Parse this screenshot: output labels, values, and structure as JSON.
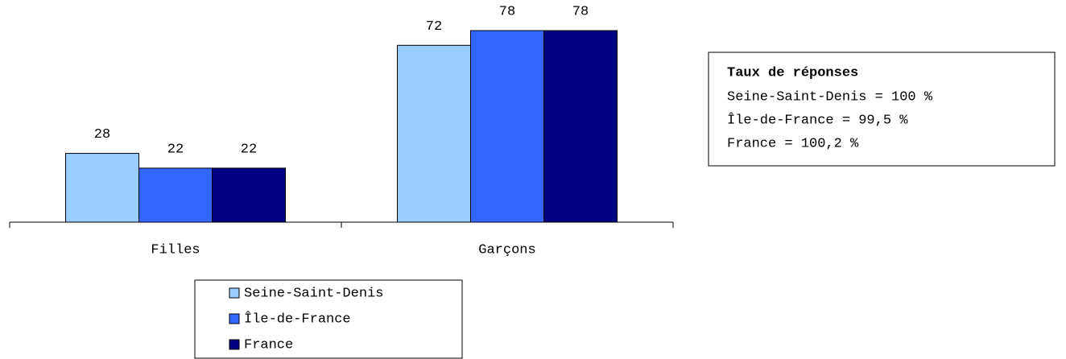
{
  "chart_data": {
    "type": "bar",
    "categories": [
      "Filles",
      "Garçons"
    ],
    "series": [
      {
        "name": "Seine-Saint-Denis",
        "color": "#99ccff",
        "values": [
          28,
          72
        ]
      },
      {
        "name": "Île-de-France",
        "color": "#3366ff",
        "values": [
          22,
          78
        ]
      },
      {
        "name": "France",
        "color": "#000080",
        "values": [
          22,
          78
        ]
      }
    ],
    "annotation": {
      "title": "Taux de réponses",
      "lines": [
        "Seine-Saint-Denis = 100 %",
        "Île-de-France = 99,5 %",
        "France = 100,2 %"
      ]
    },
    "legend": "bottom"
  }
}
